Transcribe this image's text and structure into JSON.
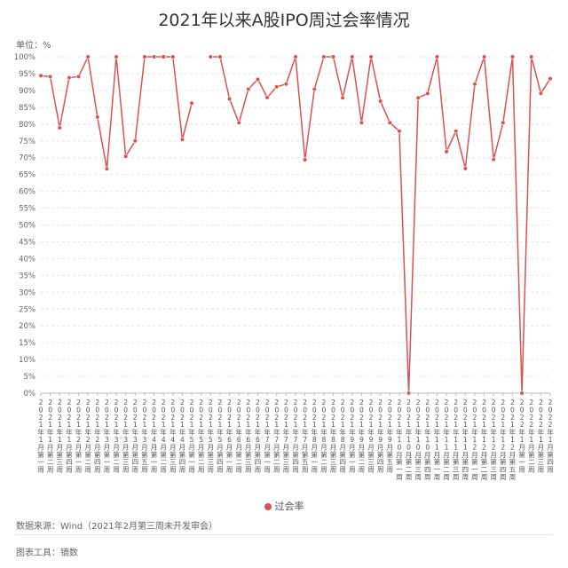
{
  "title": "2021年以来A股IPO周过会率情况",
  "unit_label": "单位：%",
  "source": "数据来源：Wind（2021年2月第三周未开发审会）",
  "tool": "图表工具：镝数",
  "chart_data": {
    "type": "line",
    "title": "2021年以来A股IPO周过会率情况",
    "ylim": [
      0,
      100
    ],
    "y_ticks": [
      0,
      5,
      10,
      15,
      20,
      25,
      30,
      35,
      40,
      45,
      50,
      55,
      60,
      65,
      70,
      75,
      80,
      85,
      90,
      95,
      100
    ],
    "y_tick_suffix": "%",
    "grid": true,
    "legend_position": "bottom",
    "colors": {
      "series": "#d9534f",
      "grid": "#e6e6e6",
      "axis": "#bbbbbb"
    },
    "categories": [
      "2021年1月第一周",
      "2021年1月第二周",
      "2021年1月第三周",
      "2021年1月第四周",
      "2021年2月第一周",
      "2021年2月第二周",
      "2021年2月第四周",
      "2021年3月第一周",
      "2021年3月第二周",
      "2021年3月第三周",
      "2021年3月第四周",
      "2021年3月第五周",
      "2021年4月第一周",
      "2021年4月第二周",
      "2021年4月第三周",
      "2021年4月第四周",
      "2021年5月第一周",
      "2021年5月第二周",
      "2021年5月第三周",
      "2021年5月第四周",
      "2021年6月第一周",
      "2021年6月第二周",
      "2021年6月第三周",
      "2021年6月第四周",
      "2021年7月第一周",
      "2021年7月第二周",
      "2021年7月第三周",
      "2021年7月第四周",
      "2021年7月第五周",
      "2021年8月第一周",
      "2021年8月第二周",
      "2021年8月第三周",
      "2021年8月第四周",
      "2021年9月第一周",
      "2021年9月第二周",
      "2021年9月第三周",
      "2021年9月第四周",
      "2021年9月第五周",
      "2021年10月第一周",
      "2021年10月第二周",
      "2021年10月第三周",
      "2021年10月第四周",
      "2021年11月第一周",
      "2021年11月第二周",
      "2021年11月第三周",
      "2021年11月第四周",
      "2021年12月第一周",
      "2021年12月第二周",
      "2021年12月第三周",
      "2021年12月第四周",
      "2021年12月第五周",
      "2022年1月第一周",
      "2022年1月第二周",
      "2022年1月第三周",
      "2022年1月第四周"
    ],
    "series": [
      {
        "name": "过会率",
        "values": [
          94.4,
          94.1,
          78.9,
          93.8,
          94.1,
          100,
          82.1,
          66.7,
          100,
          70.4,
          75.0,
          100,
          100,
          100,
          100,
          75.4,
          86.2,
          null,
          100,
          100,
          87.5,
          80.4,
          90.4,
          93.3,
          87.9,
          91.1,
          91.9,
          100,
          69.4,
          90.4,
          100,
          100,
          87.8,
          100,
          80.4,
          100,
          86.8,
          80.4,
          77.9,
          0,
          87.8,
          89.1,
          100,
          71.8,
          77.9,
          66.8,
          91.9,
          100,
          69.5,
          80.4,
          100,
          0,
          100,
          89.1,
          93.5
        ]
      }
    ]
  }
}
